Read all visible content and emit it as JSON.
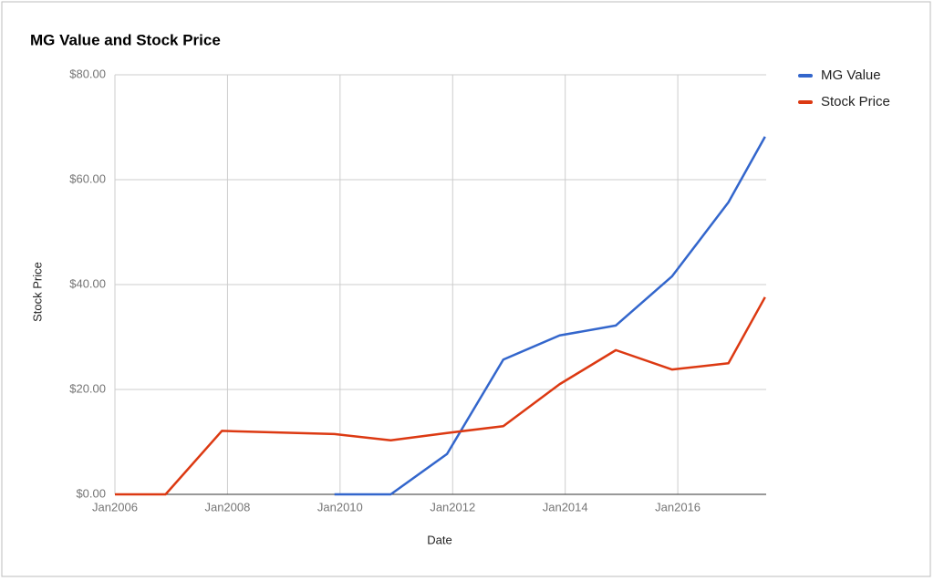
{
  "chart_data": {
    "type": "line",
    "title": "MG Value and Stock Price",
    "x_label": "Date",
    "y_label": "Stock Price",
    "x": [
      2006.0,
      2006.9,
      2007.9,
      2009.9,
      2010.9,
      2011.9,
      2012.9,
      2013.9,
      2014.9,
      2015.9,
      2016.9,
      2017.55
    ],
    "series": [
      {
        "name": "MG Value",
        "color": "#3366cc",
        "values": [
          null,
          null,
          null,
          0,
          0,
          7.7,
          25.7,
          30.3,
          32.2,
          41.6,
          55.7,
          68.2
        ]
      },
      {
        "name": "Stock Price",
        "color": "#dc3912",
        "values": [
          0,
          0,
          12.1,
          11.5,
          10.3,
          11.7,
          13.0,
          21.0,
          27.5,
          23.8,
          25.0,
          37.6
        ]
      }
    ],
    "xlim": [
      2006,
      2017.57
    ],
    "xticks": [
      {
        "value": 2006,
        "label": "Jan2006"
      },
      {
        "value": 2008,
        "label": "Jan2008"
      },
      {
        "value": 2010,
        "label": "Jan2010"
      },
      {
        "value": 2012,
        "label": "Jan2012"
      },
      {
        "value": 2014,
        "label": "Jan2014"
      },
      {
        "value": 2016,
        "label": "Jan2016"
      }
    ],
    "ylim": [
      0,
      80
    ],
    "yticks": [
      {
        "value": 0,
        "label": "$0.00"
      },
      {
        "value": 20,
        "label": "$20.00"
      },
      {
        "value": 40,
        "label": "$40.00"
      },
      {
        "value": 60,
        "label": "$60.00"
      },
      {
        "value": 80,
        "label": "$80.00"
      }
    ],
    "grid": true,
    "legend": "right"
  }
}
